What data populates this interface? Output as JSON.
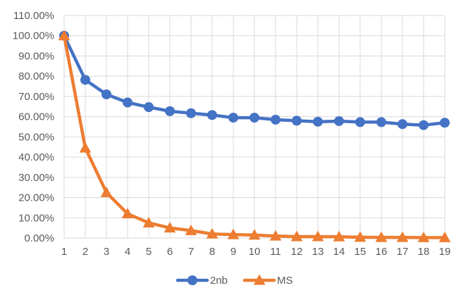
{
  "chart_data": {
    "type": "line",
    "title": "",
    "xlabel": "",
    "ylabel": "",
    "x": [
      1,
      2,
      3,
      4,
      5,
      6,
      7,
      8,
      9,
      10,
      11,
      12,
      13,
      14,
      15,
      16,
      17,
      18,
      19
    ],
    "ylim": [
      0,
      110
    ],
    "y_ticks": [
      0,
      10,
      20,
      30,
      40,
      50,
      60,
      70,
      80,
      90,
      100,
      110
    ],
    "y_tick_labels": [
      "0.00%",
      "10.00%",
      "20.00%",
      "30.00%",
      "40.00%",
      "50.00%",
      "60.00%",
      "70.00%",
      "80.00%",
      "90.00%",
      "100.00%",
      "110.00%"
    ],
    "x_tick_labels": [
      "1",
      "2",
      "3",
      "4",
      "5",
      "6",
      "7",
      "8",
      "9",
      "10",
      "11",
      "12",
      "13",
      "14",
      "15",
      "16",
      "17",
      "18",
      "19"
    ],
    "grid": true,
    "legend_position": "bottom",
    "series": [
      {
        "name": "2nb",
        "color": "#4472C4",
        "marker": "circle",
        "values": [
          100,
          78.2,
          71.0,
          67.0,
          64.7,
          62.7,
          61.7,
          60.8,
          59.5,
          59.5,
          58.5,
          58.0,
          57.5,
          57.8,
          57.3,
          57.3,
          56.3,
          55.8,
          57.0
        ]
      },
      {
        "name": "MS",
        "color": "#ED7D31",
        "marker": "triangle",
        "values": [
          100,
          44.5,
          22.5,
          12.0,
          7.5,
          5.0,
          3.7,
          2.0,
          1.7,
          1.5,
          1.0,
          0.7,
          0.7,
          0.6,
          0.4,
          0.3,
          0.3,
          0.2,
          0.2
        ]
      }
    ]
  }
}
